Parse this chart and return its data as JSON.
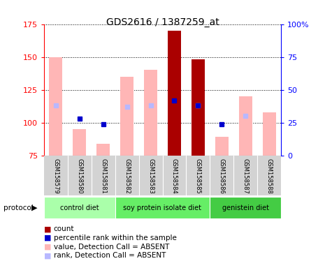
{
  "title": "GDS2616 / 1387259_at",
  "samples": [
    "GSM158579",
    "GSM158580",
    "GSM158581",
    "GSM158582",
    "GSM158583",
    "GSM158584",
    "GSM158585",
    "GSM158586",
    "GSM158587",
    "GSM158588"
  ],
  "groups": [
    {
      "label": "control diet",
      "samples": [
        0,
        1,
        2
      ]
    },
    {
      "label": "soy protein isolate diet",
      "samples": [
        3,
        4,
        5,
        6
      ]
    },
    {
      "label": "genistein diet",
      "samples": [
        7,
        8,
        9
      ]
    }
  ],
  "value_absent": [
    150.0,
    95.0,
    84.0,
    135.0,
    140.0,
    null,
    148.0,
    89.0,
    120.0,
    108.0
  ],
  "rank_absent": [
    113.0,
    null,
    null,
    112.0,
    113.0,
    null,
    113.0,
    null,
    105.0,
    null
  ],
  "count_present": [
    null,
    null,
    null,
    null,
    null,
    170.0,
    null,
    null,
    null,
    null
  ],
  "rank_present": [
    null,
    103.0,
    99.0,
    null,
    null,
    117.0,
    113.0,
    99.0,
    null,
    null
  ],
  "count_present2": [
    null,
    null,
    null,
    null,
    null,
    null,
    148.0,
    null,
    null,
    null
  ],
  "ylim_left": [
    75,
    175
  ],
  "ylim_right": [
    0,
    100
  ],
  "yticks_left": [
    75,
    100,
    125,
    150,
    175
  ],
  "yticks_right": [
    0,
    25,
    50,
    75,
    100
  ],
  "color_value_absent": "#ffb6b6",
  "color_rank_absent": "#b8b8ff",
  "color_count": "#aa0000",
  "color_rank_present": "#0000cc",
  "bar_width": 0.55,
  "group_color_light": "#aaffaa",
  "group_color_mid": "#77ee77",
  "group_color_dark": "#55dd55",
  "group_colors": [
    "#b8f0b8",
    "#66ee66",
    "#55dd55"
  ]
}
